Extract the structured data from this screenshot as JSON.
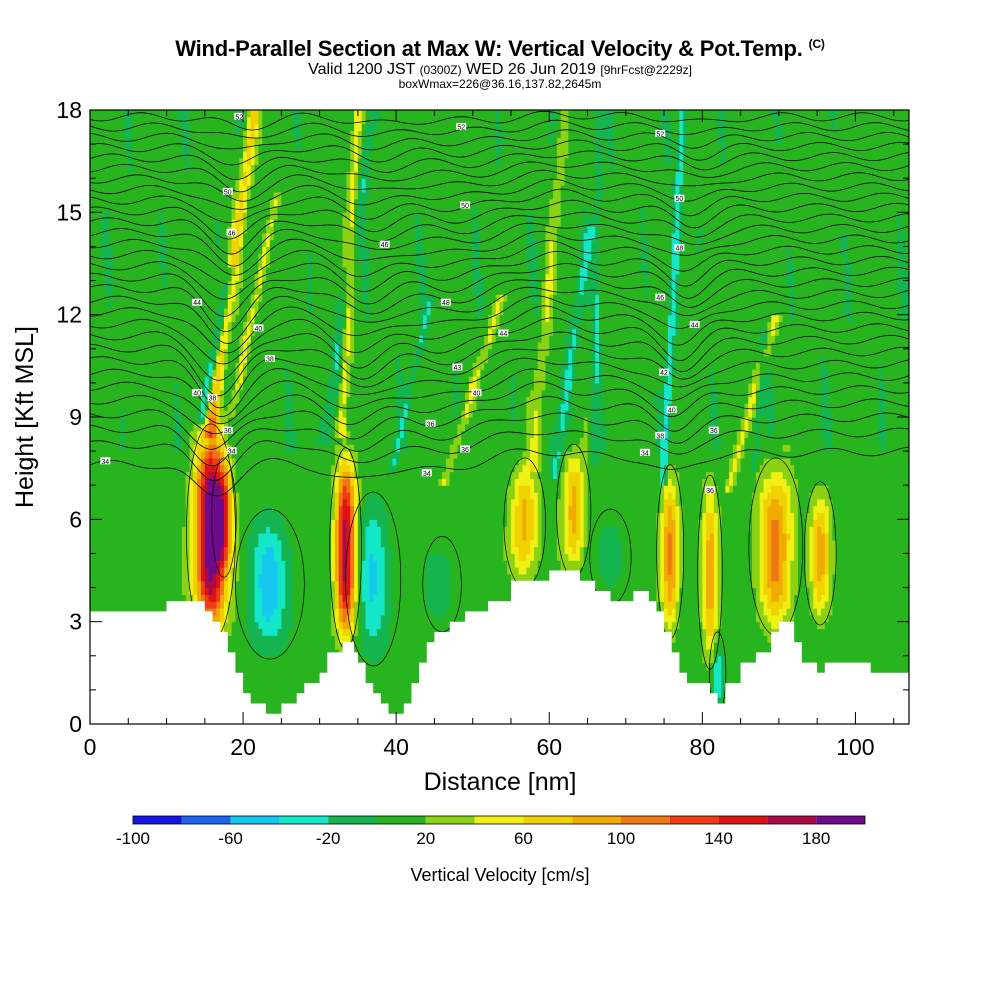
{
  "header": {
    "title": "Wind-Parallel Section at Max W: Vertical Velocity & Pot.Temp.",
    "copyright": "(C)",
    "valid_prefix": "Valid 1200 JST",
    "valid_zulu": "(0300Z)",
    "valid_date": "WED 26 Jun 2019",
    "forecast": "[9hrFcst@2229z]",
    "box_info": "boxWmax=226@36.16,137.82,2645m"
  },
  "chart_data": {
    "type": "heatmap",
    "xlabel": "Distance [nm]",
    "ylabel": "Height [Kft MSL]",
    "xlim": [
      0,
      107
    ],
    "ylim": [
      0,
      18
    ],
    "x_ticks": [
      "0",
      "20",
      "40",
      "60",
      "80",
      "100"
    ],
    "y_ticks": [
      "0",
      "3",
      "6",
      "9",
      "12",
      "15",
      "18"
    ],
    "x_tick_values": [
      0,
      20,
      40,
      60,
      80,
      100
    ],
    "y_tick_values": [
      0,
      3,
      6,
      9,
      12,
      15,
      18
    ],
    "colorbar": {
      "title": "Vertical Velocity [cm/s]",
      "labels": [
        "-100",
        "-60",
        "-20",
        "20",
        "60",
        "100",
        "140",
        "180"
      ],
      "label_values": [
        -100,
        -60,
        -20,
        20,
        60,
        100,
        140,
        180
      ],
      "bins": [
        -100,
        -80,
        -60,
        -40,
        -20,
        0,
        20,
        40,
        60,
        80,
        100,
        120,
        140,
        160,
        180,
        200
      ],
      "colors": [
        "#1414e6",
        "#1e64f0",
        "#14c8f0",
        "#14e6c8",
        "#14b450",
        "#28b41e",
        "#8cd214",
        "#f0f014",
        "#f0d200",
        "#f0aa00",
        "#f07814",
        "#f03c14",
        "#dc1414",
        "#aa0a46",
        "#6e0a8c"
      ]
    },
    "terrain_kft": [
      [
        0,
        3.3
      ],
      [
        7.5,
        3.3
      ],
      [
        10,
        3.6
      ],
      [
        14,
        3.6
      ],
      [
        15,
        3.3
      ],
      [
        16,
        3.0
      ],
      [
        17,
        2.7
      ],
      [
        18,
        2.1
      ],
      [
        19,
        1.5
      ],
      [
        20,
        0.9
      ],
      [
        21,
        0.6
      ],
      [
        23,
        0.3
      ],
      [
        25,
        0.6
      ],
      [
        27,
        0.9
      ],
      [
        28,
        1.2
      ],
      [
        30,
        1.5
      ],
      [
        31,
        2.1
      ],
      [
        33,
        2.4
      ],
      [
        34.5,
        2.1
      ],
      [
        35,
        1.8
      ],
      [
        36,
        1.2
      ],
      [
        37,
        0.9
      ],
      [
        38,
        0.6
      ],
      [
        39,
        0.3
      ],
      [
        40,
        0.3
      ],
      [
        41,
        0.6
      ],
      [
        42,
        1.2
      ],
      [
        43,
        1.8
      ],
      [
        44,
        2.4
      ],
      [
        45,
        2.7
      ],
      [
        47,
        3.0
      ],
      [
        49,
        3.3
      ],
      [
        52,
        3.6
      ],
      [
        55,
        4.2
      ],
      [
        58,
        4.2
      ],
      [
        60,
        4.5
      ],
      [
        63,
        4.5
      ],
      [
        64,
        4.2
      ],
      [
        66,
        3.9
      ],
      [
        68,
        3.6
      ],
      [
        70,
        3.6
      ],
      [
        71,
        3.9
      ],
      [
        72,
        3.9
      ],
      [
        73,
        3.6
      ],
      [
        74,
        3.3
      ],
      [
        75,
        2.7
      ],
      [
        76,
        2.1
      ],
      [
        77,
        1.5
      ],
      [
        78,
        1.2
      ],
      [
        79,
        1.2
      ],
      [
        81,
        0.9
      ],
      [
        82,
        0.6
      ],
      [
        83,
        1.2
      ],
      [
        85,
        1.8
      ],
      [
        87,
        2.1
      ],
      [
        88,
        2.1
      ],
      [
        89,
        2.7
      ],
      [
        90,
        3.0
      ],
      [
        92,
        2.4
      ],
      [
        93,
        1.8
      ],
      [
        95,
        1.5
      ],
      [
        96,
        1.8
      ],
      [
        100,
        1.8
      ],
      [
        102,
        1.5
      ],
      [
        107,
        1.5
      ]
    ],
    "updrafts": [
      {
        "x": 15.8,
        "base": 2.6,
        "top": 8.6,
        "peak": 200,
        "width": 2.0
      },
      {
        "x": 17.5,
        "base": 4.5,
        "top": 7.6,
        "peak": 70,
        "width": 1.0
      },
      {
        "x": 33.4,
        "base": 2.4,
        "top": 7.9,
        "peak": 160,
        "width": 1.3
      },
      {
        "x": 56.8,
        "base": 4.2,
        "top": 7.6,
        "peak": 80,
        "width": 1.7
      },
      {
        "x": 63.2,
        "base": 4.5,
        "top": 8.0,
        "peak": 80,
        "width": 1.4
      },
      {
        "x": 75.8,
        "base": 2.7,
        "top": 7.4,
        "peak": 90,
        "width": 1.1
      },
      {
        "x": 81.0,
        "base": 1.8,
        "top": 7.1,
        "peak": 80,
        "width": 1.0
      },
      {
        "x": 89.6,
        "base": 2.8,
        "top": 7.6,
        "peak": 95,
        "width": 2.2
      },
      {
        "x": 95.4,
        "base": 3.1,
        "top": 6.9,
        "peak": 75,
        "width": 1.3
      }
    ],
    "downdrafts": [
      {
        "x": 23.5,
        "base": 2.2,
        "top": 6.0,
        "peak": -55,
        "width": 2.5
      },
      {
        "x": 37.0,
        "base": 2.0,
        "top": 6.5,
        "peak": -45,
        "width": 2.0
      },
      {
        "x": 82.0,
        "base": 0.6,
        "top": 2.4,
        "peak": -45,
        "width": 0.6
      },
      {
        "x": 46.0,
        "base": 3.0,
        "top": 5.2,
        "peak": -25,
        "width": 1.4
      },
      {
        "x": 68.0,
        "base": 3.8,
        "top": 6.0,
        "peak": -25,
        "width": 1.5
      }
    ],
    "upper_streaks": [
      {
        "x0": 16.0,
        "y0": 9.0,
        "x1": 21.5,
        "y1": 18.0,
        "value": 60,
        "width": 0.8
      },
      {
        "x0": 33.0,
        "y0": 9.0,
        "x1": 35.0,
        "y1": 18.0,
        "value": 45,
        "width": 0.7
      },
      {
        "x0": 19.0,
        "y0": 9.6,
        "x1": 24.0,
        "y1": 15.0,
        "value": 40,
        "width": 0.6
      },
      {
        "x0": 47.0,
        "y0": 7.6,
        "x1": 53.0,
        "y1": 12.0,
        "value": 35,
        "width": 0.6
      },
      {
        "x0": 58.0,
        "y0": 8.0,
        "x1": 62.0,
        "y1": 18.0,
        "value": 30,
        "width": 0.7
      },
      {
        "x0": 84.0,
        "y0": 7.4,
        "x1": 89.0,
        "y1": 11.5,
        "value": 35,
        "width": 0.6
      },
      {
        "x0": 15.0,
        "y0": 9.4,
        "x1": 18.0,
        "y1": 12.8,
        "value": -50,
        "width": 0.6
      },
      {
        "x0": 31.0,
        "y0": 8.8,
        "x1": 37.0,
        "y1": 18.0,
        "value": -30,
        "width": 0.8
      },
      {
        "x0": 40.0,
        "y0": 8.0,
        "x1": 44.0,
        "y1": 12.0,
        "value": -25,
        "width": 0.5
      },
      {
        "x0": 61.0,
        "y0": 7.8,
        "x1": 65.0,
        "y1": 14.0,
        "value": -30,
        "width": 0.7
      },
      {
        "x0": 75.0,
        "y0": 7.6,
        "x1": 77.5,
        "y1": 18.0,
        "value": -45,
        "width": 0.5
      },
      {
        "x0": 66.0,
        "y0": 8.2,
        "x1": 66.5,
        "y1": 18.0,
        "value": -25,
        "width": 0.5
      },
      {
        "x0": 87.0,
        "y0": 8.0,
        "x1": 88.0,
        "y1": 11.0,
        "value": -25,
        "width": 0.4
      }
    ],
    "theta_contours": {
      "count": 30,
      "base_start_kft": 7.6,
      "base_end_kft": 8.0,
      "top_kft": 17.8,
      "dips": [
        {
          "x": 16.0,
          "amp": -1.4,
          "width": 4.0
        },
        {
          "x": 34.0,
          "amp": -0.9,
          "width": 4.5
        },
        {
          "x": 45.0,
          "amp": -0.5,
          "width": 6.0
        },
        {
          "x": 76.0,
          "amp": -0.8,
          "width": 3.5
        },
        {
          "x": 58.0,
          "amp": 0.3,
          "width": 5.0
        }
      ],
      "labels": [
        {
          "x": 2,
          "y": 7.7,
          "text": "34"
        },
        {
          "x": 14,
          "y": 9.7,
          "text": "40"
        },
        {
          "x": 16,
          "y": 9.55,
          "text": "38"
        },
        {
          "x": 18,
          "y": 8.6,
          "text": "36"
        },
        {
          "x": 18.5,
          "y": 8.0,
          "text": "34"
        },
        {
          "x": 14,
          "y": 12.35,
          "text": "44"
        },
        {
          "x": 22,
          "y": 11.6,
          "text": "40"
        },
        {
          "x": 23.5,
          "y": 10.7,
          "text": "38"
        },
        {
          "x": 18.5,
          "y": 14.4,
          "text": "46"
        },
        {
          "x": 18,
          "y": 15.6,
          "text": "50"
        },
        {
          "x": 19.5,
          "y": 17.8,
          "text": "52"
        },
        {
          "x": 38.5,
          "y": 14.05,
          "text": "46"
        },
        {
          "x": 48.5,
          "y": 17.5,
          "text": "52"
        },
        {
          "x": 49,
          "y": 15.2,
          "text": "50"
        },
        {
          "x": 46.5,
          "y": 12.35,
          "text": "48"
        },
        {
          "x": 54,
          "y": 11.45,
          "text": "44"
        },
        {
          "x": 48,
          "y": 10.45,
          "text": "43"
        },
        {
          "x": 50.5,
          "y": 9.7,
          "text": "40"
        },
        {
          "x": 44.5,
          "y": 8.8,
          "text": "36"
        },
        {
          "x": 49,
          "y": 8.05,
          "text": "36"
        },
        {
          "x": 44,
          "y": 7.35,
          "text": "34"
        },
        {
          "x": 74.5,
          "y": 17.3,
          "text": "52"
        },
        {
          "x": 77,
          "y": 15.4,
          "text": "50"
        },
        {
          "x": 77,
          "y": 13.95,
          "text": "48"
        },
        {
          "x": 74.5,
          "y": 12.5,
          "text": "46"
        },
        {
          "x": 79,
          "y": 11.7,
          "text": "44"
        },
        {
          "x": 75,
          "y": 10.3,
          "text": "42"
        },
        {
          "x": 76,
          "y": 9.2,
          "text": "40"
        },
        {
          "x": 74.5,
          "y": 8.45,
          "text": "38"
        },
        {
          "x": 81.5,
          "y": 8.6,
          "text": "36"
        },
        {
          "x": 72.5,
          "y": 7.95,
          "text": "34"
        },
        {
          "x": 81,
          "y": 6.85,
          "text": "36"
        }
      ]
    }
  }
}
